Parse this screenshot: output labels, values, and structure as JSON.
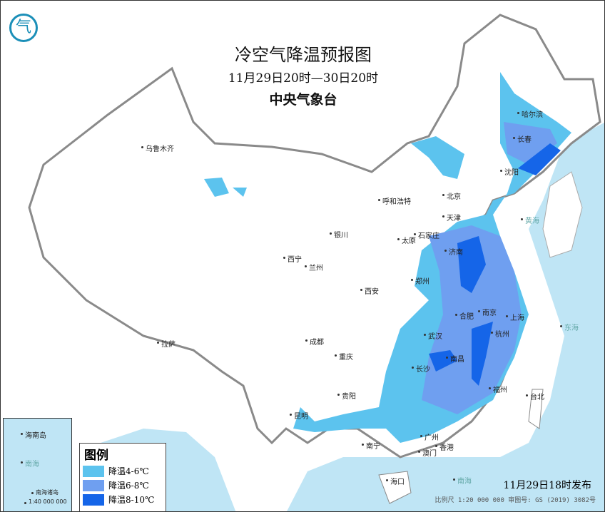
{
  "title": "冷空气降温预报图",
  "period": "11月29日20时—30日20时",
  "agency": "中央气象台",
  "issued": "11月29日18时发布",
  "scale_note": "比例尺 1:20 000 000   审图号: GS (2019) 3082号",
  "legend": {
    "title": "图例",
    "items": [
      {
        "label": "降温4-6℃",
        "color": "#5cc3ee"
      },
      {
        "label": "降温6-8℃",
        "color": "#6f9ff0"
      },
      {
        "label": "降温8-10℃",
        "color": "#1565e8"
      }
    ]
  },
  "inset": {
    "labels": [
      "南海",
      "海南岛",
      "南海诸岛",
      "1:40 000 000"
    ]
  },
  "sea_labels": [
    "黄海",
    "东海",
    "南海"
  ],
  "colors": {
    "sea": "#bfe5f5",
    "land": "#ffffff",
    "border": "#8a8a8a"
  },
  "cities": {
    "urumqi": "乌鲁木齐",
    "harbin": "哈尔滨",
    "changchun": "长春",
    "shenyang": "沈阳",
    "hohhot": "呼和浩特",
    "beijing": "北京",
    "tianjin": "天津",
    "shijiazhuang": "石家庄",
    "taiyuan": "太原",
    "yinchuan": "银川",
    "xining": "西宁",
    "lanzhou": "兰州",
    "jinan": "济南",
    "zhengzhou": "郑州",
    "xian": "西安",
    "hefei": "合肥",
    "nanjing": "南京",
    "shanghai": "上海",
    "hangzhou": "杭州",
    "wuhan": "武汉",
    "chengdu": "成都",
    "chongqing": "重庆",
    "changsha": "长沙",
    "nanchang": "南昌",
    "guiyang": "贵阳",
    "fuzhou": "福州",
    "taipei": "台北",
    "kunming": "昆明",
    "nanning": "南宁",
    "guangzhou": "广州",
    "hongkong": "香港",
    "macau": "澳门",
    "haikou": "海口",
    "lhasa": "拉萨"
  }
}
